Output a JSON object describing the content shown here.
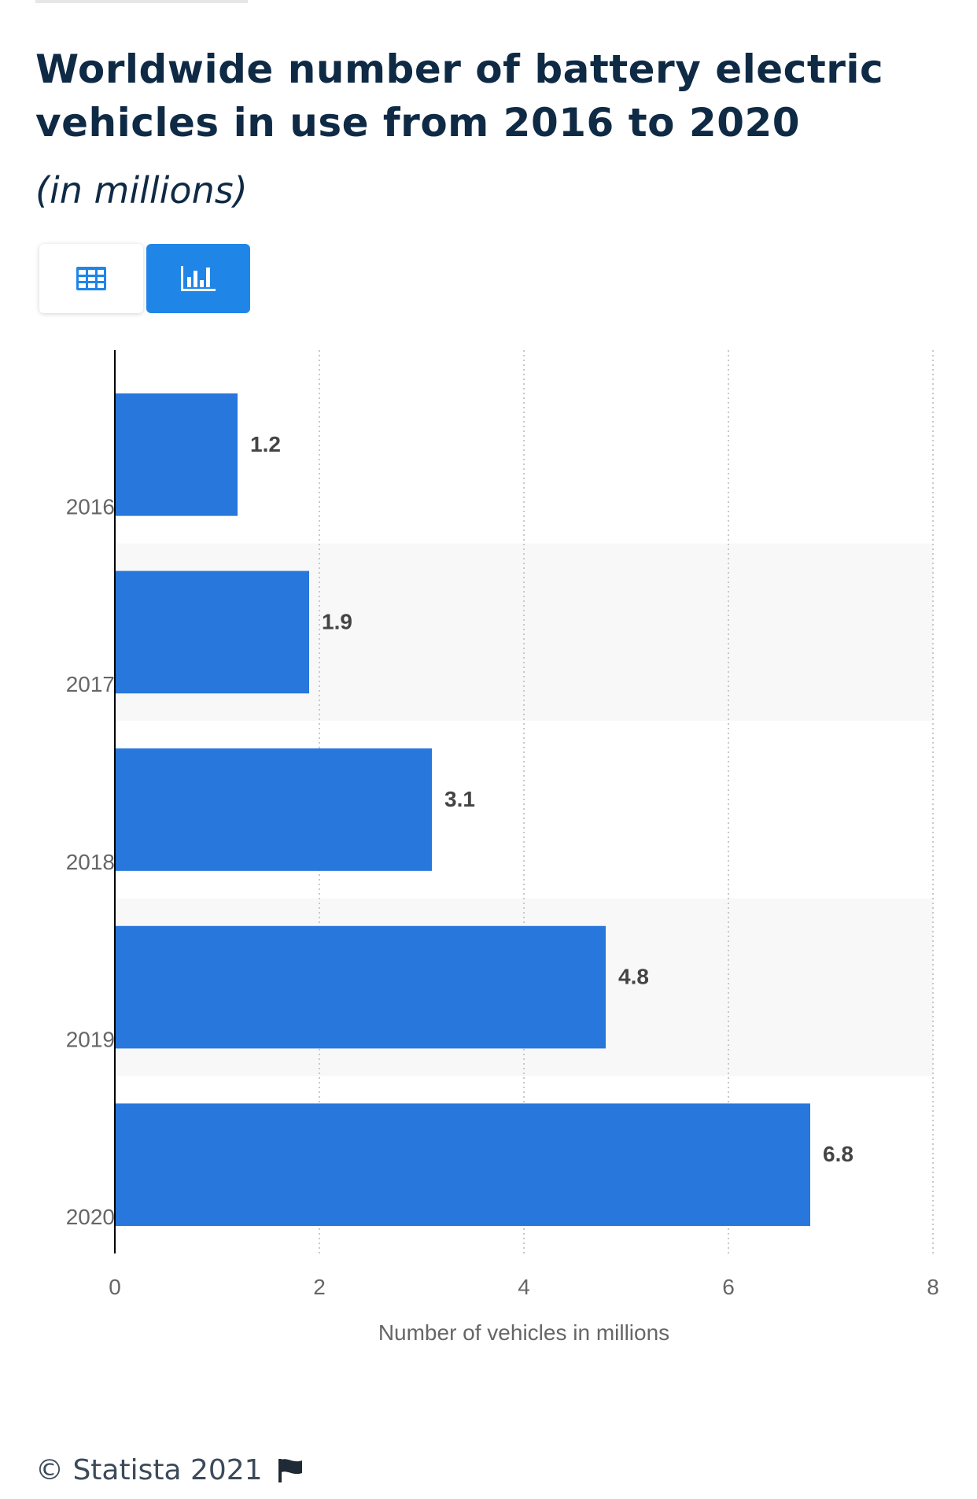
{
  "header": {
    "title": "Worldwide number of battery electric vehicles in use from 2016 to 2020",
    "subtitle": "(in millions)"
  },
  "view_toggle": {
    "table_icon": "table-grid-icon",
    "chart_icon": "bar-chart-icon",
    "active": "chart",
    "active_color": "#1f86e8"
  },
  "chart_data": {
    "type": "bar",
    "orientation": "horizontal",
    "categories": [
      "2016",
      "2017",
      "2018",
      "2019",
      "2020"
    ],
    "values": [
      1.2,
      1.9,
      3.1,
      4.8,
      6.8
    ],
    "value_labels": [
      "1.2",
      "1.9",
      "3.1",
      "4.8",
      "6.8"
    ],
    "xlabel": "Number of vehicles in millions",
    "ylabel": "",
    "xlim": [
      0,
      8
    ],
    "xticks": [
      0,
      2,
      4,
      6,
      8
    ],
    "grid": "vertical dotted",
    "bar_color": "#2877dc"
  },
  "footer": {
    "copyright": "© Statista 2021",
    "flag_icon": "flag-icon"
  }
}
